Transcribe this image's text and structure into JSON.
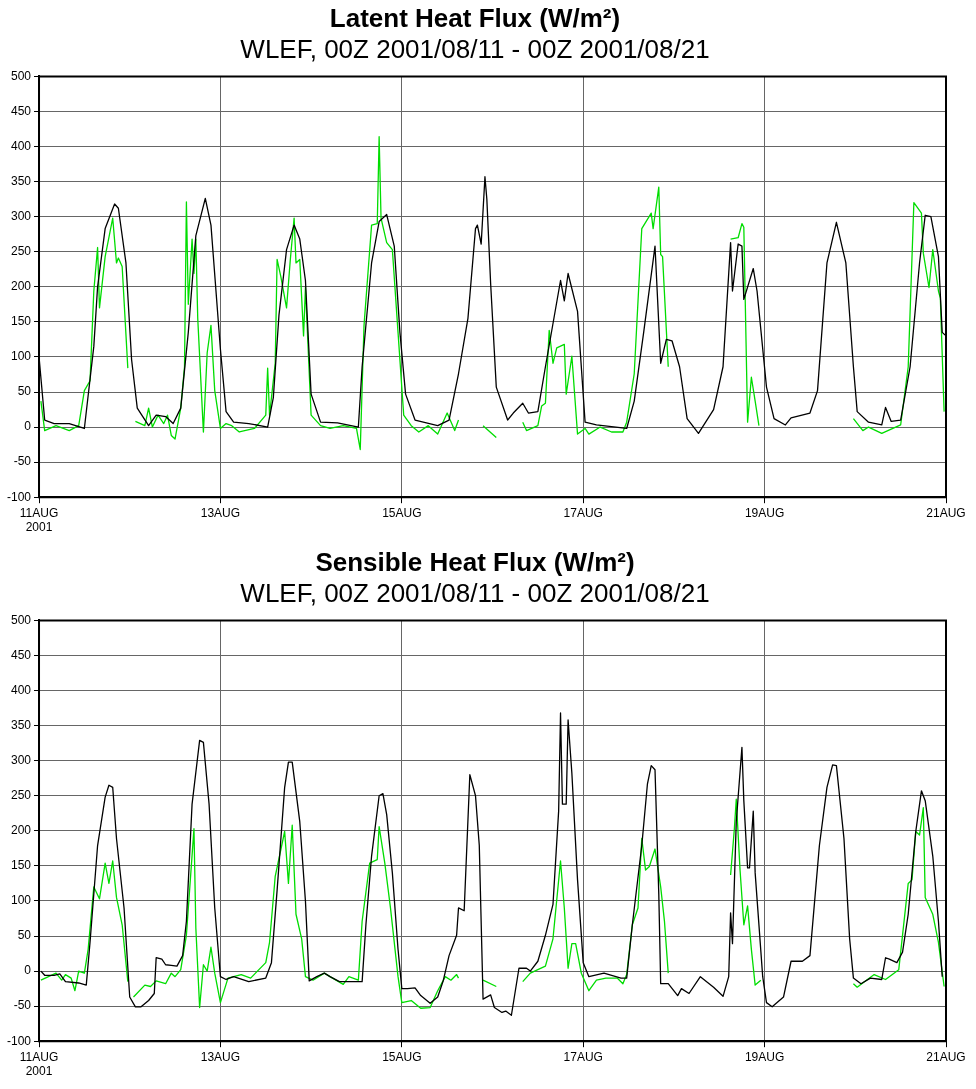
{
  "chart_data": [
    {
      "type": "line",
      "title": "Latent Heat Flux (W/m²)",
      "subtitle": "WLEF, 00Z 2001/08/11 - 00Z 2001/08/21",
      "xlim": [
        "2001-08-11T00:00",
        "2001-08-21T00:00"
      ],
      "xticks": [
        {
          "value": "2001-08-11",
          "label": "11AUG\n2001"
        },
        {
          "value": "2001-08-13",
          "label": "13AUG"
        },
        {
          "value": "2001-08-15",
          "label": "15AUG"
        },
        {
          "value": "2001-08-17",
          "label": "17AUG"
        },
        {
          "value": "2001-08-19",
          "label": "19AUG"
        },
        {
          "value": "2001-08-21",
          "label": "21AUG"
        }
      ],
      "ylim": [
        -100,
        500
      ],
      "yticks": [
        -100,
        -50,
        0,
        50,
        100,
        150,
        200,
        250,
        300,
        350,
        400,
        450,
        500
      ],
      "grid": true,
      "legend": false,
      "marker": "none",
      "line_style": "solid",
      "series": [
        {
          "color": "#000000",
          "x": [
            "2001-08-11T00:00",
            "2001-08-11T01:30",
            "2001-08-11T04:00",
            "2001-08-11T08:00",
            "2001-08-11T12:00",
            "2001-08-11T14:30",
            "2001-08-11T15:30",
            "2001-08-11T17:30",
            "2001-08-11T20:00",
            "2001-08-11T21:00",
            "2001-08-11T23:00",
            "2001-08-12T00:30",
            "2001-08-12T02:00",
            "2001-08-12T05:00",
            "2001-08-12T07:00",
            "2001-08-12T09:30",
            "2001-08-12T11:30",
            "2001-08-12T13:30",
            "2001-08-12T15:30",
            "2001-08-12T17:30",
            "2001-08-12T20:00",
            "2001-08-12T21:30",
            "2001-08-13T00:00",
            "2001-08-13T01:30",
            "2001-08-13T03:30",
            "2001-08-13T07:30",
            "2001-08-13T12:30",
            "2001-08-13T14:00",
            "2001-08-13T15:30",
            "2001-08-13T17:30",
            "2001-08-13T19:30",
            "2001-08-13T21:00",
            "2001-08-13T22:30",
            "2001-08-14T00:00",
            "2001-08-14T02:30",
            "2001-08-14T07:00",
            "2001-08-14T12:30",
            "2001-08-14T13:30",
            "2001-08-14T16:00",
            "2001-08-14T18:00",
            "2001-08-14T20:00",
            "2001-08-14T22:00",
            "2001-08-14T23:30",
            "2001-08-15T01:00",
            "2001-08-15T03:30",
            "2001-08-15T09:30",
            "2001-08-15T12:30",
            "2001-08-15T15:00",
            "2001-08-15T17:30",
            "2001-08-15T19:30",
            "2001-08-15T20:00",
            "2001-08-15T21:00",
            "2001-08-15T22:00",
            "2001-08-15T22:30",
            "2001-08-15T23:30",
            "2001-08-16T01:00",
            "2001-08-16T04:00",
            "2001-08-16T05:30",
            "2001-08-16T08:00",
            "2001-08-16T09:30",
            "2001-08-16T12:00",
            "2001-08-16T14:00",
            "2001-08-16T18:00",
            "2001-08-16T19:00",
            "2001-08-16T20:00",
            "2001-08-16T22:30",
            "2001-08-17T00:30",
            "2001-08-17T03:30",
            "2001-08-17T11:30",
            "2001-08-17T13:30",
            "2001-08-17T16:00",
            "2001-08-17T19:00",
            "2001-08-17T20:30",
            "2001-08-17T22:00",
            "2001-08-17T23:30",
            "2001-08-18T01:30",
            "2001-08-18T03:30",
            "2001-08-18T06:30",
            "2001-08-18T10:30",
            "2001-08-18T13:00",
            "2001-08-18T15:00",
            "2001-08-18T15:30",
            "2001-08-18T17:00",
            "2001-08-18T18:00",
            "2001-08-18T18:30",
            "2001-08-18T21:00",
            "2001-08-18T22:00",
            "2001-08-19T00:30",
            "2001-08-19T02:30",
            "2001-08-19T05:30",
            "2001-08-19T07:00",
            "2001-08-19T12:00",
            "2001-08-19T14:00",
            "2001-08-19T16:30",
            "2001-08-19T19:00",
            "2001-08-19T21:30",
            "2001-08-19T23:30",
            "2001-08-20T00:30",
            "2001-08-20T03:30",
            "2001-08-20T07:00",
            "2001-08-20T08:00",
            "2001-08-20T09:30",
            "2001-08-20T12:00",
            "2001-08-20T14:30",
            "2001-08-20T17:00",
            "2001-08-20T18:30",
            "2001-08-20T20:00",
            "2001-08-20T22:00",
            "2001-08-20T23:00",
            "2001-08-21T00:00"
          ],
          "values": [
            100,
            10,
            5,
            5,
            -2,
            115,
            200,
            283,
            318,
            312,
            234,
            96,
            27,
            2,
            17,
            15,
            5,
            27,
            135,
            273,
            326,
            288,
            111,
            22,
            7,
            5,
            0,
            42,
            160,
            253,
            288,
            268,
            209,
            47,
            7,
            6,
            0,
            86,
            234,
            293,
            303,
            258,
            135,
            47,
            10,
            2,
            10,
            76,
            155,
            283,
            288,
            261,
            357,
            325,
            205,
            57,
            10,
            20,
            34,
            20,
            22,
            86,
            209,
            180,
            219,
            165,
            7,
            3,
            -2,
            37,
            135,
            258,
            91,
            125,
            123,
            86,
            12,
            -9,
            25,
            86,
            263,
            194,
            261,
            258,
            182,
            226,
            194,
            57,
            12,
            3,
            13,
            20,
            52,
            234,
            292,
            234,
            86,
            22,
            7,
            3,
            28,
            8,
            10,
            86,
            234,
            302,
            300,
            243,
            135,
            130
          ]
        },
        {
          "color": "#00dd00",
          "x": [
            "2001-08-11T00:30",
            "2001-08-11T01:30",
            "2001-08-11T04:30",
            "2001-08-11T08:00",
            "2001-08-11T10:30",
            "2001-08-11T12:00",
            "2001-08-11T13:30",
            "2001-08-11T14:30",
            "2001-08-11T15:30",
            "2001-08-11T16:00",
            "2001-08-11T17:30",
            "2001-08-11T19:30",
            "2001-08-11T20:30",
            "2001-08-11T21:00",
            "2001-08-11T22:00",
            "2001-08-11T23:30",
            "2001-08-12T00:30",
            "2001-08-12T01:30",
            "2001-08-12T04:00",
            "2001-08-12T05:00",
            "2001-08-12T06:00",
            "2001-08-12T07:30",
            "2001-08-12T09:00",
            "2001-08-12T10:00",
            "2001-08-12T11:00",
            "2001-08-12T12:00",
            "2001-08-12T13:30",
            "2001-08-12T14:30",
            "2001-08-12T15:00",
            "2001-08-12T15:30",
            "2001-08-12T16:30",
            "2001-08-12T17:00",
            "2001-08-12T17:30",
            "2001-08-12T18:00",
            "2001-08-12T19:30",
            "2001-08-12T20:30",
            "2001-08-12T21:30",
            "2001-08-12T22:30",
            "2001-08-13T00:00",
            "2001-08-13T01:30",
            "2001-08-13T03:00",
            "2001-08-13T05:00",
            "2001-08-13T09:00",
            "2001-08-13T12:00",
            "2001-08-13T12:30",
            "2001-08-13T13:00",
            "2001-08-13T14:30",
            "2001-08-13T15:00",
            "2001-08-13T16:00",
            "2001-08-13T17:30",
            "2001-08-13T18:30",
            "2001-08-13T19:30",
            "2001-08-13T20:00",
            "2001-08-13T21:00",
            "2001-08-13T22:00",
            "2001-08-13T22:30",
            "2001-08-14T00:00",
            "2001-08-14T02:30",
            "2001-08-14T05:00",
            "2001-08-14T08:30",
            "2001-08-14T12:00",
            "2001-08-14T13:00",
            "2001-08-14T14:00",
            "2001-08-14T16:00",
            "2001-08-14T17:30",
            "2001-08-14T18:00",
            "2001-08-14T18:30",
            "2001-08-14T20:00",
            "2001-08-14T21:30",
            "2001-08-14T23:00",
            "2001-08-15T00:30",
            "2001-08-15T02:30",
            "2001-08-15T04:30",
            "2001-08-15T07:00",
            "2001-08-15T09:30",
            "2001-08-15T12:00",
            "2001-08-15T14:00",
            "2001-08-15T15:00",
            "2001-08-15T18:00",
            "2001-08-15T21:30",
            "2001-08-16T01:00",
            "2001-08-16T04:00",
            "2001-08-16T08:00",
            "2001-08-16T09:00",
            "2001-08-16T12:00",
            "2001-08-16T13:00",
            "2001-08-16T14:00",
            "2001-08-16T15:00",
            "2001-08-16T16:00",
            "2001-08-16T17:00",
            "2001-08-16T19:00",
            "2001-08-16T19:30",
            "2001-08-16T21:00",
            "2001-08-16T22:30",
            "2001-08-17T00:30",
            "2001-08-17T01:30",
            "2001-08-17T04:30",
            "2001-08-17T07:30",
            "2001-08-17T10:30",
            "2001-08-17T11:30",
            "2001-08-17T13:30",
            "2001-08-17T15:30",
            "2001-08-17T18:00",
            "2001-08-17T18:30",
            "2001-08-17T20:00",
            "2001-08-17T20:30",
            "2001-08-17T21:00",
            "2001-08-17T22:30",
            "2001-08-18T07:00",
            "2001-08-18T15:00",
            "2001-08-18T17:00",
            "2001-08-18T18:00",
            "2001-08-18T18:30",
            "2001-08-18T19:30",
            "2001-08-18T20:30",
            "2001-08-18T21:30",
            "2001-08-18T22:30",
            "2001-08-19T08:00",
            "2001-08-19T23:30",
            "2001-08-20T02:00",
            "2001-08-20T03:30",
            "2001-08-20T07:00",
            "2001-08-20T12:00",
            "2001-08-20T14:00",
            "2001-08-20T15:30",
            "2001-08-20T17:30",
            "2001-08-20T18:00",
            "2001-08-20T19:30",
            "2001-08-20T20:30",
            "2001-08-20T22:00",
            "2001-08-20T22:30",
            "2001-08-20T23:30"
          ],
          "values": [
            37,
            -5,
            2,
            -5,
            2,
            52,
            66,
            194,
            256,
            170,
            243,
            298,
            234,
            241,
            229,
            84,
            null,
            8,
            2,
            27,
            0,
            17,
            5,
            17,
            -12,
            -17,
            27,
            86,
            321,
            175,
            268,
            219,
            268,
            155,
            -7,
            106,
            145,
            52,
            -2,
            5,
            2,
            -7,
            -2,
            17,
            84,
            17,
            91,
            239,
            214,
            170,
            239,
            298,
            234,
            239,
            130,
            199,
            17,
            2,
            -2,
            2,
            -2,
            -32,
            145,
            288,
            290,
            414,
            298,
            263,
            253,
            135,
            17,
            2,
            -7,
            2,
            -10,
            20,
            -5,
            10,
            null,
            2,
            -15,
            null,
            7,
            -5,
            2,
            30,
            34,
            138,
            91,
            113,
            118,
            47,
            101,
            -10,
            -2,
            -10,
            0,
            -7,
            -7,
            7,
            76,
            283,
            305,
            283,
            342,
            246,
            243,
            86,
            null,
            268,
            270,
            290,
            285,
            7,
            71,
            37,
            2,
            null,
            12,
            -5,
            0,
            -9,
            3,
            86,
            320,
            305,
            248,
            199,
            253,
            194,
            184,
            22
          ]
        }
      ]
    },
    {
      "type": "line",
      "title": "Sensible Heat Flux (W/m²)",
      "subtitle": "WLEF, 00Z 2001/08/11 - 00Z 2001/08/21",
      "xlim": [
        "2001-08-11T00:00",
        "2001-08-21T00:00"
      ],
      "xticks": [
        {
          "value": "2001-08-11",
          "label": "11AUG\n2001"
        },
        {
          "value": "2001-08-13",
          "label": "13AUG"
        },
        {
          "value": "2001-08-15",
          "label": "15AUG"
        },
        {
          "value": "2001-08-17",
          "label": "17AUG"
        },
        {
          "value": "2001-08-19",
          "label": "19AUG"
        },
        {
          "value": "2001-08-21",
          "label": "21AUG"
        }
      ],
      "ylim": [
        -100,
        500
      ],
      "yticks": [
        -100,
        -50,
        0,
        50,
        100,
        150,
        200,
        250,
        300,
        350,
        400,
        450,
        500
      ],
      "grid": true,
      "legend": false,
      "marker": "none",
      "line_style": "solid",
      "series": [
        {
          "color": "#000000",
          "x": [
            "2001-08-11T00:30",
            "2001-08-11T01:30",
            "2001-08-11T04:00",
            "2001-08-11T05:30",
            "2001-08-11T07:00",
            "2001-08-11T10:30",
            "2001-08-11T12:30",
            "2001-08-11T13:30",
            "2001-08-11T15:30",
            "2001-08-11T17:30",
            "2001-08-11T18:30",
            "2001-08-11T19:30",
            "2001-08-11T20:30",
            "2001-08-11T22:30",
            "2001-08-12T00:00",
            "2001-08-12T01:30",
            "2001-08-12T03:00",
            "2001-08-12T05:00",
            "2001-08-12T06:30",
            "2001-08-12T07:00",
            "2001-08-12T08:30",
            "2001-08-12T09:30",
            "2001-08-12T11:00",
            "2001-08-12T12:30",
            "2001-08-12T14:00",
            "2001-08-12T15:00",
            "2001-08-12T16:30",
            "2001-08-12T18:30",
            "2001-08-12T19:30",
            "2001-08-12T21:00",
            "2001-08-12T22:30",
            "2001-08-13T00:00",
            "2001-08-13T01:30",
            "2001-08-13T03:30",
            "2001-08-13T07:30",
            "2001-08-13T12:00",
            "2001-08-13T13:30",
            "2001-08-13T15:00",
            "2001-08-13T17:00",
            "2001-08-13T18:00",
            "2001-08-13T19:00",
            "2001-08-13T21:00",
            "2001-08-13T22:30",
            "2001-08-13T23:30",
            "2001-08-14T01:30",
            "2001-08-14T03:30",
            "2001-08-14T05:00",
            "2001-08-14T07:30",
            "2001-08-14T09:30",
            "2001-08-14T13:30",
            "2001-08-14T14:30",
            "2001-08-14T16:00",
            "2001-08-14T18:00",
            "2001-08-14T19:00",
            "2001-08-14T20:00",
            "2001-08-14T21:30",
            "2001-08-14T23:00",
            "2001-08-15T00:00",
            "2001-08-15T01:30",
            "2001-08-15T03:30",
            "2001-08-15T05:00",
            "2001-08-15T07:30",
            "2001-08-15T09:30",
            "2001-08-15T11:00",
            "2001-08-15T12:30",
            "2001-08-15T14:30",
            "2001-08-15T15:00",
            "2001-08-15T16:30",
            "2001-08-15T18:00",
            "2001-08-15T19:30",
            "2001-08-15T20:30",
            "2001-08-15T21:30",
            "2001-08-15T23:30",
            "2001-08-16T00:30",
            "2001-08-16T02:30",
            "2001-08-16T03:30",
            "2001-08-16T05:00",
            "2001-08-16T07:00",
            "2001-08-16T09:00",
            "2001-08-16T10:00",
            "2001-08-16T12:00",
            "2001-08-16T14:00",
            "2001-08-16T16:00",
            "2001-08-16T17:30",
            "2001-08-16T18:00",
            "2001-08-16T18:30",
            "2001-08-16T19:30",
            "2001-08-16T20:00",
            "2001-08-16T21:00",
            "2001-08-16T22:30",
            "2001-08-17T00:00",
            "2001-08-17T01:30",
            "2001-08-17T05:30",
            "2001-08-17T10:00",
            "2001-08-17T11:30",
            "2001-08-17T13:00",
            "2001-08-17T15:30",
            "2001-08-17T17:00",
            "2001-08-17T18:00",
            "2001-08-17T19:00",
            "2001-08-17T20:00",
            "2001-08-17T20:30",
            "2001-08-17T22:30",
            "2001-08-18T01:00",
            "2001-08-18T02:00",
            "2001-08-18T04:00",
            "2001-08-18T07:00",
            "2001-08-18T10:30",
            "2001-08-18T13:00",
            "2001-08-18T14:30",
            "2001-08-18T15:00",
            "2001-08-18T15:30",
            "2001-08-18T16:30",
            "2001-08-18T18:00",
            "2001-08-18T18:30",
            "2001-08-18T19:30",
            "2001-08-18T20:00",
            "2001-08-18T21:00",
            "2001-08-18T21:30",
            "2001-08-18T23:30",
            "2001-08-19T00:30",
            "2001-08-19T02:00",
            "2001-08-19T05:00",
            "2001-08-19T07:00",
            "2001-08-19T10:00",
            "2001-08-19T12:00",
            "2001-08-19T14:30",
            "2001-08-19T16:30",
            "2001-08-19T18:00",
            "2001-08-19T19:00",
            "2001-08-19T21:00",
            "2001-08-19T22:30",
            "2001-08-19T23:30",
            "2001-08-20T01:30",
            "2001-08-20T04:00",
            "2001-08-20T07:00",
            "2001-08-20T08:00",
            "2001-08-20T09:00",
            "2001-08-20T11:00",
            "2001-08-20T12:30",
            "2001-08-20T14:00",
            "2001-08-20T16:00",
            "2001-08-20T17:30",
            "2001-08-20T18:30",
            "2001-08-20T20:30",
            "2001-08-20T22:00",
            "2001-08-20T23:00"
          ],
          "values": [
            0,
            -6,
            -6,
            -4,
            -15,
            -17,
            -20,
            41,
            179,
            248,
            265,
            262,
            189,
            90,
            -37,
            -51,
            -51,
            -42,
            -32,
            19,
            17,
            9,
            8,
            7,
            22,
            71,
            238,
            329,
            326,
            238,
            90,
            -8,
            -12,
            -8,
            -15,
            -10,
            12,
            115,
            262,
            298,
            298,
            213,
            100,
            -14,
            -8,
            -3,
            -8,
            -15,
            -15,
            -15,
            66,
            164,
            250,
            253,
            223,
            140,
            31,
            -25,
            -25,
            -24,
            -35,
            -46,
            -37,
            -13,
            22,
            51,
            90,
            86,
            280,
            250,
            179,
            -40,
            -34,
            -52,
            -59,
            -57,
            -63,
            4,
            4,
            0,
            14,
            51,
            95,
            228,
            368,
            238,
            238,
            358,
            282,
            130,
            12,
            -8,
            -3,
            -10,
            -10,
            66,
            179,
            267,
            293,
            287,
            110,
            -18,
            -18,
            -35,
            -25,
            -32,
            -8,
            -23,
            -36,
            -8,
            83,
            39,
            213,
            319,
            243,
            147,
            147,
            228,
            140,
            -8,
            -45,
            -51,
            -37,
            14,
            14,
            22,
            179,
            262,
            294,
            293,
            189,
            46,
            -10,
            -18,
            -10,
            -12,
            19,
            17,
            12,
            27,
            81,
            199,
            257,
            243,
            164,
            71,
            -8
          ]
        },
        {
          "color": "#00dd00",
          "x": [
            "2001-08-11T00:30",
            "2001-08-11T04:30",
            "2001-08-11T06:00",
            "2001-08-11T07:00",
            "2001-08-11T08:30",
            "2001-08-11T09:30",
            "2001-08-11T10:30",
            "2001-08-11T12:00",
            "2001-08-11T13:00",
            "2001-08-11T14:30",
            "2001-08-11T16:00",
            "2001-08-11T17:30",
            "2001-08-11T18:30",
            "2001-08-11T19:30",
            "2001-08-11T20:30",
            "2001-08-11T22:00",
            "2001-08-11T23:30",
            "2001-08-12T00:00",
            "2001-08-12T01:00",
            "2001-08-12T04:00",
            "2001-08-12T05:30",
            "2001-08-12T07:00",
            "2001-08-12T09:30",
            "2001-08-12T11:00",
            "2001-08-12T12:00",
            "2001-08-12T13:30",
            "2001-08-12T15:00",
            "2001-08-12T17:00",
            "2001-08-12T17:30",
            "2001-08-12T18:30",
            "2001-08-12T19:30",
            "2001-08-12T20:30",
            "2001-08-12T21:30",
            "2001-08-12T22:30",
            "2001-08-13T00:00",
            "2001-08-13T02:00",
            "2001-08-13T03:30",
            "2001-08-13T05:30",
            "2001-08-13T08:00",
            "2001-08-13T12:00",
            "2001-08-13T13:00",
            "2001-08-13T14:30",
            "2001-08-13T17:00",
            "2001-08-13T18:00",
            "2001-08-13T19:00",
            "2001-08-13T20:00",
            "2001-08-13T21:30",
            "2001-08-13T22:30",
            "2001-08-14T00:30",
            "2001-08-14T03:30",
            "2001-08-14T05:00",
            "2001-08-14T08:30",
            "2001-08-14T10:00",
            "2001-08-14T12:30",
            "2001-08-14T13:30",
            "2001-08-14T15:30",
            "2001-08-14T17:30",
            "2001-08-14T18:00",
            "2001-08-14T19:30",
            "2001-08-14T21:00",
            "2001-08-14T23:00",
            "2001-08-15T00:00",
            "2001-08-15T02:30",
            "2001-08-15T05:00",
            "2001-08-15T07:30",
            "2001-08-15T09:30",
            "2001-08-15T11:30",
            "2001-08-15T13:00",
            "2001-08-15T14:30",
            "2001-08-15T15:00",
            "2001-08-15T18:00",
            "2001-08-15T21:30",
            "2001-08-16T01:00",
            "2001-08-16T04:00",
            "2001-08-16T08:00",
            "2001-08-16T10:00",
            "2001-08-16T14:00",
            "2001-08-16T16:00",
            "2001-08-16T18:00",
            "2001-08-16T19:00",
            "2001-08-16T20:00",
            "2001-08-16T21:00",
            "2001-08-16T22:00",
            "2001-08-16T23:30",
            "2001-08-17T01:30",
            "2001-08-17T03:30",
            "2001-08-17T06:00",
            "2001-08-17T09:00",
            "2001-08-17T10:30",
            "2001-08-17T11:30",
            "2001-08-17T13:00",
            "2001-08-17T14:30",
            "2001-08-17T15:30",
            "2001-08-17T16:30",
            "2001-08-17T17:30",
            "2001-08-17T19:00",
            "2001-08-17T20:30",
            "2001-08-17T21:30",
            "2001-08-17T22:30",
            "2001-08-18T07:00",
            "2001-08-18T15:00",
            "2001-08-18T16:00",
            "2001-08-18T16:30",
            "2001-08-18T17:30",
            "2001-08-18T18:30",
            "2001-08-18T19:30",
            "2001-08-18T20:30",
            "2001-08-18T21:30",
            "2001-08-18T23:00",
            "2001-08-19T08:00",
            "2001-08-19T23:30",
            "2001-08-20T00:30",
            "2001-08-20T02:30",
            "2001-08-20T05:00",
            "2001-08-20T08:00",
            "2001-08-20T11:30",
            "2001-08-20T14:00",
            "2001-08-20T15:00",
            "2001-08-20T16:00",
            "2001-08-20T17:00",
            "2001-08-20T18:00",
            "2001-08-20T18:30",
            "2001-08-20T20:30",
            "2001-08-20T22:00",
            "2001-08-20T23:30"
          ],
          "values": [
            -13,
            -3,
            -13,
            -5,
            -10,
            -28,
            0,
            -3,
            31,
            120,
            103,
            154,
            125,
            157,
            105,
            66,
            -15,
            null,
            -37,
            -20,
            -22,
            -14,
            -18,
            -3,
            -8,
            2,
            51,
            203,
            61,
            -52,
            9,
            0,
            34,
            -3,
            -45,
            -10,
            -8,
            -5,
            -10,
            12,
            41,
            135,
            199,
            125,
            208,
            81,
            46,
            -8,
            -13,
            -3,
            -8,
            -19,
            -8,
            -13,
            71,
            154,
            159,
            206,
            154,
            90,
            -8,
            -45,
            -42,
            -53,
            -52,
            -28,
            -8,
            -13,
            -5,
            -10,
            null,
            -13,
            -22,
            null,
            -15,
            -3,
            7,
            46,
            157,
            90,
            4,
            39,
            39,
            -3,
            -28,
            -13,
            -10,
            -10,
            -18,
            -5,
            66,
            90,
            189,
            144,
            149,
            174,
            120,
            71,
            -3,
            null,
            137,
            203,
            245,
            144,
            66,
            93,
            31,
            -20,
            -13,
            null,
            -18,
            -23,
            -15,
            -5,
            -12,
            2,
            125,
            130,
            199,
            194,
            233,
            105,
            81,
            41,
            -22
          ]
        }
      ]
    }
  ]
}
